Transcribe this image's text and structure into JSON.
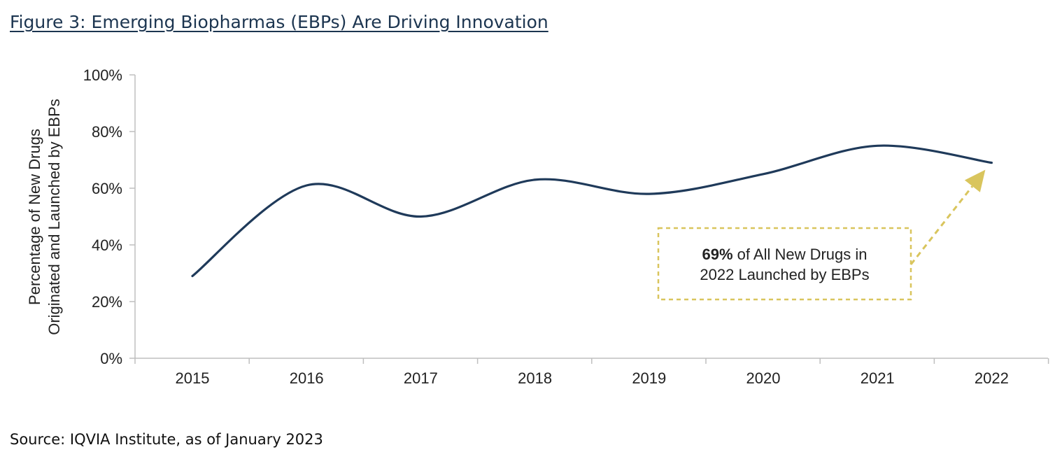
{
  "figure": {
    "title": "Figure 3: Emerging Biopharmas (EBPs) Are Driving Innovation",
    "source": "Source: IQVIA Institute, as of January 2023"
  },
  "chart_data": {
    "type": "line",
    "title": "",
    "xlabel": "",
    "ylabel_lines": [
      "Percentage of New Drugs",
      "Originated and Launched by EBPs"
    ],
    "categories": [
      "2015",
      "2016",
      "2017",
      "2018",
      "2019",
      "2020",
      "2021",
      "2022"
    ],
    "series": [
      {
        "values": [
          29,
          61,
          50,
          63,
          58,
          65,
          75,
          69
        ]
      }
    ],
    "ylim": [
      0,
      100
    ],
    "yticks": [
      0,
      20,
      40,
      60,
      80,
      100
    ],
    "ytick_labels": [
      "0%",
      "20%",
      "40%",
      "60%",
      "80%",
      "100%"
    ],
    "grid": false,
    "smooth": true,
    "line_color": "#1f3a5a",
    "annotation": {
      "bold": "69%",
      "line1_rest": " of All New Drugs in",
      "line2": "2022 Launched by EBPs",
      "border_color": "#d9c55d",
      "arrow_color": "#d9c55d",
      "points_to": "2022"
    }
  }
}
